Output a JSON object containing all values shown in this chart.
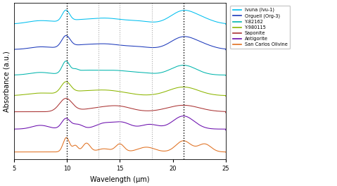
{
  "xlabel": "Wavelength (μm)",
  "ylabel": "Absorbance (a.u.)",
  "xlim": [
    5,
    25
  ],
  "dashed_lines_black": [
    10,
    21
  ],
  "dashed_lines_gray": [
    13,
    15,
    18
  ],
  "legend_labels": [
    "Ivuna (Ivu-1)",
    "Orgueil (Org-3)",
    "Y-82162",
    "Y-980115",
    "Saponite",
    "Antigorite",
    "San Carlos Olivine"
  ],
  "colors": [
    "#00BFEF",
    "#1C39BB",
    "#00B5AD",
    "#8DB600",
    "#AA3333",
    "#6A0DAD",
    "#E07020"
  ],
  "background": "#FFFFFF",
  "offsets": [
    6.5,
    5.2,
    3.9,
    2.85,
    2.0,
    1.1,
    0.0
  ],
  "scale": 0.75
}
